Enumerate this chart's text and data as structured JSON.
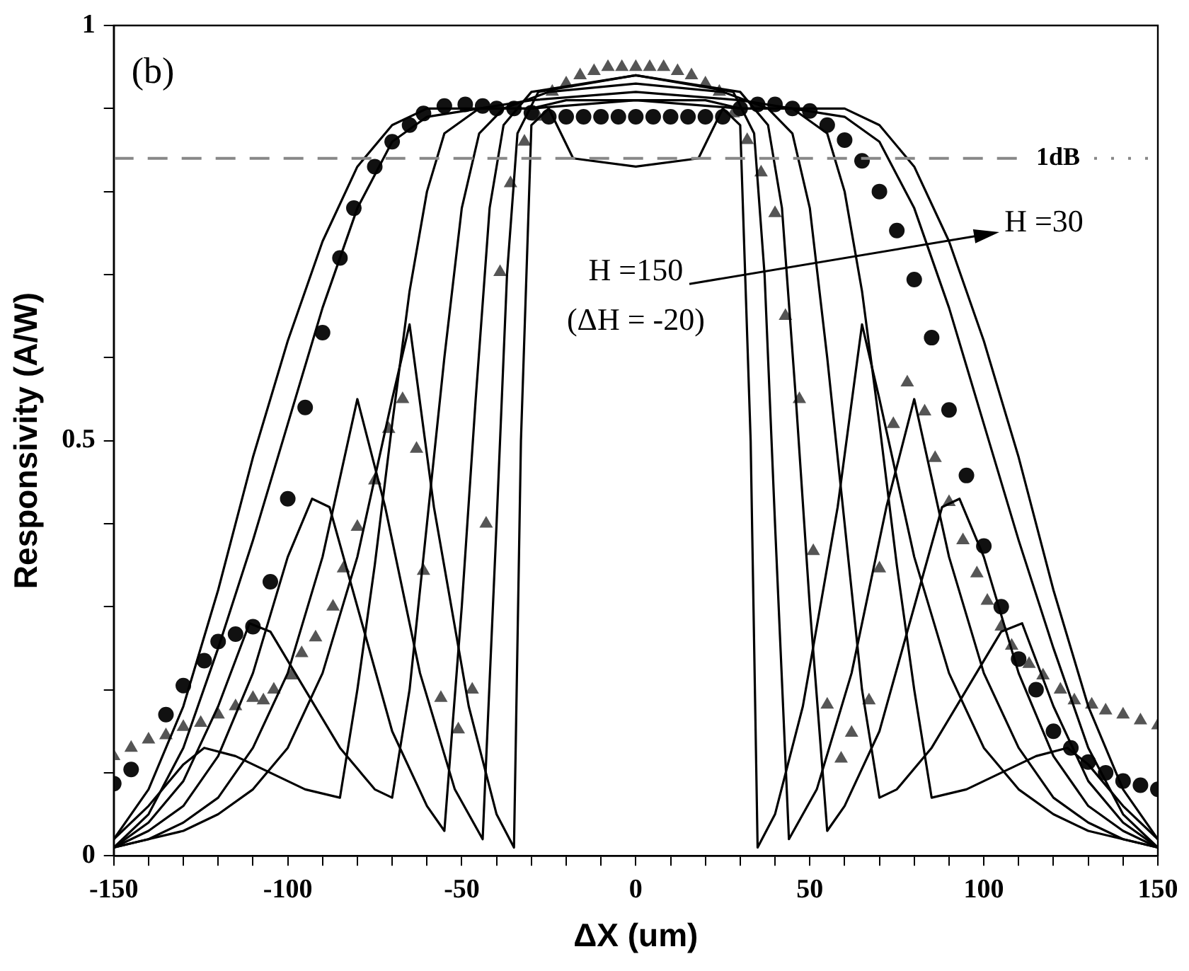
{
  "chart_data": {
    "type": "line",
    "xlabel": "ΔX (um)",
    "ylabel": "Responsivity (A/W)",
    "xlim": [
      -150,
      150
    ],
    "xticks": [
      -150,
      {
        "value": -140,
        "label": null
      },
      {
        "value": -130,
        "label": null
      },
      {
        "value": -120,
        "label": null
      },
      {
        "value": -110,
        "label": null
      },
      -100,
      {
        "value": -90,
        "label": null
      },
      {
        "value": -80,
        "label": null
      },
      {
        "value": -70,
        "label": null
      },
      {
        "value": -60,
        "label": null
      },
      -50,
      {
        "value": -40,
        "label": null
      },
      {
        "value": -30,
        "label": null
      },
      {
        "value": -20,
        "label": null
      },
      {
        "value": -10,
        "label": null
      },
      0,
      {
        "value": 10,
        "label": null
      },
      {
        "value": 20,
        "label": null
      },
      {
        "value": 30,
        "label": null
      },
      {
        "value": 40,
        "label": null
      },
      50,
      {
        "value": 60,
        "label": null
      },
      {
        "value": 70,
        "label": null
      },
      {
        "value": 80,
        "label": null
      },
      {
        "value": 90,
        "label": null
      },
      100,
      {
        "value": 110,
        "label": null
      },
      {
        "value": 120,
        "label": null
      },
      {
        "value": 130,
        "label": null
      },
      {
        "value": 140,
        "label": null
      },
      150
    ],
    "ylim": [
      0,
      1
    ],
    "yticks": [
      0,
      {
        "value": 0.1,
        "label": null
      },
      {
        "value": 0.2,
        "label": null
      },
      {
        "value": 0.3,
        "label": null
      },
      {
        "value": 0.4,
        "label": null
      },
      0.5,
      {
        "value": 0.6,
        "label": null
      },
      {
        "value": 0.7,
        "label": null
      },
      {
        "value": 0.8,
        "label": null
      },
      {
        "value": 0.9,
        "label": null
      },
      1
    ],
    "grid": false,
    "legend": false,
    "ref_lines": [
      {
        "axis": "y",
        "value": 0.84,
        "label": "1dB",
        "color": "#888888",
        "line_style": "dashed"
      }
    ],
    "annotations": [
      "(b)",
      "H =150",
      "(ΔH = -20)",
      "H =30"
    ],
    "series": [
      {
        "type": "line",
        "color": "#000000",
        "marker": "none",
        "x": [
          -150,
          -140,
          -130,
          -120,
          -110,
          -100,
          -90,
          -80,
          -70,
          -60,
          -45,
          -30,
          -20,
          0,
          20,
          30,
          45,
          60,
          70,
          80,
          90,
          100,
          110,
          120,
          130,
          140,
          150
        ],
        "values": [
          0.02,
          0.08,
          0.18,
          0.32,
          0.48,
          0.62,
          0.74,
          0.83,
          0.88,
          0.9,
          0.9,
          0.9,
          0.91,
          0.91,
          0.91,
          0.9,
          0.9,
          0.9,
          0.88,
          0.83,
          0.74,
          0.62,
          0.48,
          0.32,
          0.18,
          0.08,
          0.02
        ]
      },
      {
        "type": "line",
        "color": "#000000",
        "marker": "none",
        "x": [
          -150,
          -140,
          -130,
          -120,
          -110,
          -100,
          -90,
          -80,
          -70,
          -60,
          -45,
          -30,
          0,
          30,
          45,
          60,
          70,
          80,
          90,
          100,
          110,
          120,
          130,
          140,
          150
        ],
        "values": [
          0.01,
          0.05,
          0.13,
          0.25,
          0.38,
          0.52,
          0.66,
          0.78,
          0.86,
          0.89,
          0.9,
          0.9,
          0.91,
          0.9,
          0.9,
          0.89,
          0.86,
          0.78,
          0.66,
          0.52,
          0.38,
          0.25,
          0.13,
          0.05,
          0.01
        ]
      },
      {
        "type": "line",
        "color": "#000000",
        "marker": "none",
        "x": [
          -150,
          -140,
          -130,
          -124,
          -115,
          -105,
          -95,
          -85,
          -80,
          -75,
          -70,
          -65,
          -60,
          -55,
          -45,
          -30,
          0,
          30,
          45,
          55,
          60,
          65,
          70,
          75,
          80,
          85,
          95,
          105,
          115,
          124,
          130,
          140,
          150
        ],
        "values": [
          0.02,
          0.06,
          0.11,
          0.13,
          0.12,
          0.1,
          0.08,
          0.07,
          0.2,
          0.35,
          0.52,
          0.68,
          0.8,
          0.87,
          0.9,
          0.91,
          0.92,
          0.91,
          0.9,
          0.87,
          0.8,
          0.68,
          0.52,
          0.35,
          0.2,
          0.07,
          0.08,
          0.1,
          0.12,
          0.13,
          0.11,
          0.06,
          0.02
        ]
      },
      {
        "type": "line",
        "color": "#000000",
        "marker": "none",
        "x": [
          -150,
          -140,
          -130,
          -120,
          -111,
          -105,
          -95,
          -85,
          -75,
          -70,
          -65,
          -60,
          -55,
          -50,
          -45,
          -38,
          -25,
          0,
          25,
          38,
          45,
          50,
          55,
          60,
          65,
          70,
          75,
          85,
          95,
          105,
          111,
          120,
          130,
          140,
          150
        ],
        "values": [
          0.01,
          0.04,
          0.09,
          0.18,
          0.28,
          0.27,
          0.2,
          0.13,
          0.08,
          0.07,
          0.2,
          0.4,
          0.6,
          0.78,
          0.87,
          0.9,
          0.92,
          0.93,
          0.92,
          0.9,
          0.87,
          0.78,
          0.6,
          0.4,
          0.2,
          0.07,
          0.08,
          0.13,
          0.2,
          0.27,
          0.28,
          0.18,
          0.09,
          0.04,
          0.01
        ]
      },
      {
        "type": "line",
        "color": "#000000",
        "marker": "none",
        "x": [
          -150,
          -140,
          -130,
          -120,
          -110,
          -100,
          -93,
          -88,
          -80,
          -70,
          -60,
          -55,
          -50,
          -46,
          -42,
          -38,
          -30,
          0,
          30,
          38,
          42,
          46,
          50,
          55,
          60,
          70,
          80,
          88,
          93,
          100,
          110,
          120,
          130,
          140,
          150
        ],
        "values": [
          0.01,
          0.03,
          0.06,
          0.12,
          0.22,
          0.36,
          0.43,
          0.42,
          0.3,
          0.15,
          0.06,
          0.03,
          0.3,
          0.55,
          0.78,
          0.88,
          0.92,
          0.94,
          0.92,
          0.88,
          0.78,
          0.55,
          0.3,
          0.03,
          0.06,
          0.15,
          0.3,
          0.42,
          0.43,
          0.36,
          0.22,
          0.12,
          0.06,
          0.03,
          0.01
        ]
      },
      {
        "type": "line",
        "color": "#000000",
        "marker": "none",
        "x": [
          -150,
          -140,
          -130,
          -120,
          -110,
          -100,
          -90,
          -80,
          -72,
          -62,
          -52,
          -44,
          -40,
          -37,
          -34,
          -28,
          0,
          28,
          34,
          37,
          40,
          44,
          52,
          62,
          72,
          80,
          90,
          100,
          110,
          120,
          130,
          140,
          150
        ],
        "values": [
          0.01,
          0.02,
          0.04,
          0.07,
          0.13,
          0.22,
          0.36,
          0.55,
          0.42,
          0.22,
          0.08,
          0.02,
          0.4,
          0.7,
          0.87,
          0.92,
          0.94,
          0.92,
          0.87,
          0.7,
          0.4,
          0.02,
          0.08,
          0.22,
          0.42,
          0.55,
          0.36,
          0.22,
          0.13,
          0.07,
          0.04,
          0.02,
          0.01
        ]
      },
      {
        "type": "line",
        "color": "#000000",
        "marker": "none",
        "x": [
          -150,
          -140,
          -130,
          -120,
          -110,
          -100,
          -90,
          -80,
          -70,
          -65,
          -58,
          -48,
          -40,
          -35,
          -33,
          -30,
          -25,
          -18,
          0,
          18,
          25,
          30,
          33,
          35,
          40,
          48,
          58,
          65,
          70,
          80,
          90,
          100,
          110,
          120,
          130,
          140,
          150
        ],
        "values": [
          0.01,
          0.02,
          0.03,
          0.05,
          0.08,
          0.13,
          0.22,
          0.36,
          0.55,
          0.64,
          0.42,
          0.18,
          0.05,
          0.01,
          0.5,
          0.88,
          0.9,
          0.84,
          0.83,
          0.84,
          0.9,
          0.88,
          0.5,
          0.01,
          0.05,
          0.18,
          0.42,
          0.64,
          0.55,
          0.36,
          0.22,
          0.13,
          0.08,
          0.05,
          0.03,
          0.02,
          0.01
        ]
      },
      {
        "type": "scatter",
        "color": "#111111",
        "marker": "circle",
        "x": [
          -150,
          -145,
          -135,
          -130,
          -124,
          -120,
          -115,
          -110,
          -105,
          -100,
          -95,
          -90,
          -85,
          -81,
          -75,
          -70,
          -65,
          -61,
          -55,
          -49,
          -44,
          -40,
          -35,
          -30,
          -25,
          -20,
          -15,
          -10,
          -5,
          0,
          5,
          10,
          15,
          20,
          25,
          30,
          35,
          40,
          45,
          50,
          55,
          60,
          65,
          70,
          75,
          80,
          85,
          90,
          95,
          100,
          105,
          110,
          115,
          120,
          125,
          130,
          135,
          140,
          145,
          150
        ],
        "values": [
          0.087,
          0.104,
          0.17,
          0.205,
          0.235,
          0.258,
          0.267,
          0.276,
          0.33,
          0.43,
          0.54,
          0.63,
          0.72,
          0.78,
          0.83,
          0.86,
          0.88,
          0.894,
          0.903,
          0.905,
          0.903,
          0.9,
          0.9,
          0.895,
          0.89,
          0.89,
          0.89,
          0.89,
          0.89,
          0.89,
          0.89,
          0.89,
          0.89,
          0.89,
          0.89,
          0.9,
          0.905,
          0.905,
          0.9,
          0.897,
          0.88,
          0.862,
          0.837,
          0.8,
          0.753,
          0.694,
          0.624,
          0.537,
          0.458,
          0.373,
          0.3,
          0.237,
          0.2,
          0.15,
          0.13,
          0.113,
          0.1,
          0.09,
          0.085,
          0.08
        ]
      },
      {
        "type": "scatter",
        "color": "#555555",
        "marker": "triangle",
        "x": [
          -150,
          -145,
          -140,
          -135,
          -130,
          -125,
          -120,
          -115,
          -110,
          -107,
          -104,
          -99,
          -96,
          -92,
          -87,
          -84,
          -80,
          -75,
          -71,
          -67,
          -63,
          -61,
          -56,
          -51,
          -47,
          -43,
          -39,
          -36,
          -32,
          -28,
          -24,
          -20,
          -16,
          -12,
          -8,
          -4,
          0,
          4,
          8,
          12,
          16,
          20,
          24,
          28,
          32,
          36,
          40,
          43,
          47,
          51,
          55,
          59,
          62,
          67,
          70,
          74,
          78,
          83,
          86,
          90,
          94,
          98,
          101,
          105,
          108,
          113,
          117,
          122,
          126,
          131,
          135,
          140,
          145,
          150
        ],
        "values": [
          0.12,
          0.13,
          0.14,
          0.145,
          0.155,
          0.16,
          0.17,
          0.18,
          0.19,
          0.187,
          0.2,
          0.217,
          0.244,
          0.263,
          0.3,
          0.346,
          0.396,
          0.452,
          0.514,
          0.55,
          0.49,
          0.343,
          0.19,
          0.152,
          0.2,
          0.4,
          0.703,
          0.81,
          0.86,
          0.89,
          0.92,
          0.93,
          0.94,
          0.945,
          0.95,
          0.95,
          0.95,
          0.95,
          0.95,
          0.945,
          0.94,
          0.93,
          0.92,
          0.894,
          0.862,
          0.823,
          0.774,
          0.65,
          0.55,
          0.367,
          0.182,
          0.117,
          0.148,
          0.187,
          0.346,
          0.52,
          0.57,
          0.535,
          0.479,
          0.426,
          0.38,
          0.34,
          0.307,
          0.276,
          0.253,
          0.231,
          0.217,
          0.2,
          0.187,
          0.182,
          0.175,
          0.17,
          0.163,
          0.157
        ]
      }
    ]
  }
}
